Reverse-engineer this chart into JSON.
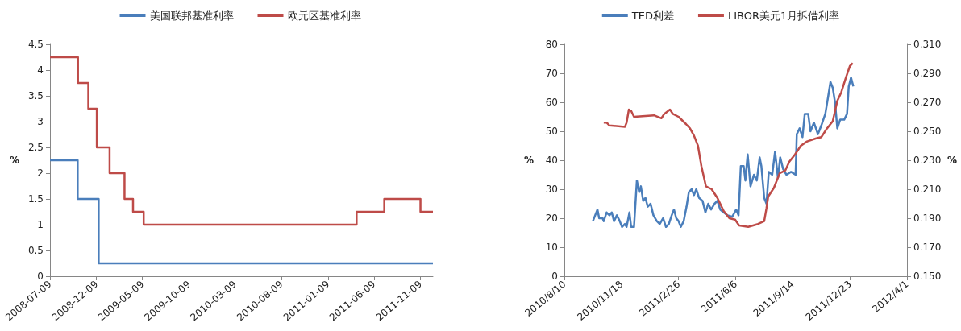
{
  "chart_data": [
    {
      "type": "step",
      "ylabel": "%",
      "legend": "top",
      "grid": false,
      "marker": "none",
      "xlim": [
        "2008-07-09",
        "2011-12-20"
      ],
      "xticks": [
        "2008-07-09",
        "2008-12-09",
        "2009-05-09",
        "2009-10-09",
        "2010-03-09",
        "2010-08-09",
        "2011-01-09",
        "2011-06-09",
        "2011-11-09"
      ],
      "ylim": [
        0,
        4.5
      ],
      "yticks": [
        0,
        0.5,
        1,
        1.5,
        2,
        2.5,
        3,
        3.5,
        4,
        4.5
      ],
      "series": [
        {
          "name": "美国联邦基准利率",
          "color": "#4a7ebb",
          "x": [
            "2008-07-09",
            "2008-10-08",
            "2008-12-16",
            "2011-12-20"
          ],
          "values": [
            2.25,
            1.5,
            0.25,
            0.25
          ]
        },
        {
          "name": "欧元区基准利率",
          "color": "#be4b48",
          "x": [
            "2008-07-09",
            "2008-10-09",
            "2008-11-12",
            "2008-12-10",
            "2009-01-21",
            "2009-03-11",
            "2009-04-08",
            "2009-05-13",
            "2011-04-13",
            "2011-07-13",
            "2011-11-09",
            "2011-12-20"
          ],
          "values": [
            4.25,
            3.75,
            3.25,
            2.5,
            2,
            1.5,
            1.25,
            1,
            1.25,
            1.5,
            1.25,
            1.25
          ]
        }
      ]
    },
    {
      "type": "line",
      "ylabel": "%",
      "y2label": "%",
      "legend": "top",
      "grid": false,
      "marker": "none",
      "xlim": [
        "2010-08-10",
        "2012-04-01"
      ],
      "xticks": [
        {
          "value": "2010-08-10",
          "label": "2010/8/10"
        },
        {
          "value": "2010-11-18",
          "label": "2010/11/18"
        },
        {
          "value": "2011-02-26",
          "label": "2011/2/26"
        },
        {
          "value": "2011-06-06",
          "label": "2011/6/6"
        },
        {
          "value": "2011-09-14",
          "label": "2011/9/14"
        },
        {
          "value": "2011-12-23",
          "label": "2011/12/23"
        },
        {
          "value": "2012-04-01",
          "label": "2012/4/1"
        }
      ],
      "ylim": [
        0,
        80
      ],
      "yticks": [
        0,
        10,
        20,
        30,
        40,
        50,
        60,
        70,
        80
      ],
      "y2lim": [
        0.15,
        0.31
      ],
      "y2ticks": [
        {
          "value": 0.15,
          "label": "0.150"
        },
        {
          "value": 0.17,
          "label": "0.170"
        },
        {
          "value": 0.19,
          "label": "0.190"
        },
        {
          "value": 0.21,
          "label": "0.210"
        },
        {
          "value": 0.23,
          "label": "0.230"
        },
        {
          "value": 0.25,
          "label": "0.250"
        },
        {
          "value": 0.27,
          "label": "0.270"
        },
        {
          "value": 0.29,
          "label": "0.290"
        },
        {
          "value": 0.31,
          "label": "0.310"
        }
      ],
      "series": [
        {
          "name": "TED利差",
          "color": "#4a7ebb",
          "x": [
            "2010-09-29",
            "2010-10-03",
            "2010-10-07",
            "2010-10-10",
            "2010-10-16",
            "2010-10-18",
            "2010-10-23",
            "2010-10-28",
            "2010-11-01",
            "2010-11-05",
            "2010-11-10",
            "2010-11-15",
            "2010-11-19",
            "2010-11-24",
            "2010-11-27",
            "2010-12-02",
            "2010-12-05",
            "2010-12-10",
            "2010-12-15",
            "2010-12-19",
            "2010-12-22",
            "2010-12-26",
            "2010-12-30",
            "2011-01-03",
            "2011-01-08",
            "2011-01-13",
            "2011-01-19",
            "2011-01-24",
            "2011-01-30",
            "2011-02-04",
            "2011-02-09",
            "2011-02-14",
            "2011-02-18",
            "2011-02-22",
            "2011-02-26",
            "2011-03-02",
            "2011-03-07",
            "2011-03-12",
            "2011-03-16",
            "2011-03-21",
            "2011-03-25",
            "2011-03-29",
            "2011-04-03",
            "2011-04-09",
            "2011-04-14",
            "2011-04-19",
            "2011-04-24",
            "2011-04-30",
            "2011-05-05",
            "2011-05-10",
            "2011-05-16",
            "2011-05-23",
            "2011-05-31",
            "2011-06-07",
            "2011-06-11",
            "2011-06-15",
            "2011-06-20",
            "2011-06-23",
            "2011-06-27",
            "2011-07-02",
            "2011-07-08",
            "2011-07-13",
            "2011-07-18",
            "2011-07-21",
            "2011-07-26",
            "2011-07-30",
            "2011-08-03",
            "2011-08-09",
            "2011-08-14",
            "2011-08-19",
            "2011-08-23",
            "2011-08-28",
            "2011-09-03",
            "2011-09-11",
            "2011-09-19",
            "2011-09-21",
            "2011-09-26",
            "2011-10-01",
            "2011-10-05",
            "2011-10-11",
            "2011-10-15",
            "2011-10-21",
            "2011-10-28",
            "2011-11-03",
            "2011-11-10",
            "2011-11-15",
            "2011-11-19",
            "2011-11-23",
            "2011-11-27",
            "2011-12-01",
            "2011-12-06",
            "2011-12-13",
            "2011-12-18",
            "2011-12-21",
            "2011-12-25",
            "2011-12-29"
          ],
          "values": [
            19,
            21,
            23,
            20,
            20,
            19,
            22,
            21,
            22,
            19,
            21,
            19,
            17,
            18,
            17,
            22,
            17,
            17,
            33,
            29,
            31,
            26,
            27,
            24,
            25,
            21,
            19,
            18,
            20,
            17,
            18,
            21,
            23,
            20,
            19,
            17,
            19,
            24,
            29,
            30,
            28,
            30,
            27,
            26,
            22,
            25,
            23,
            25,
            26,
            23,
            22,
            21,
            20.5,
            23,
            21,
            38,
            38,
            33,
            42,
            31,
            35,
            33,
            41,
            38,
            27,
            25,
            36,
            35,
            43,
            34,
            41,
            37,
            35,
            36,
            35,
            49,
            51,
            48,
            56,
            56,
            50,
            53,
            49,
            52,
            56,
            62,
            67,
            65,
            60,
            51,
            54,
            54,
            56,
            65.5,
            68.5,
            65.5
          ]
        },
        {
          "name": "LIBOR美元1月拆借利率",
          "color": "#be4b48",
          "axis": "y2",
          "x": [
            "2010-10-18",
            "2010-10-23",
            "2010-10-28",
            "2010-11-24",
            "2010-11-27",
            "2010-12-01",
            "2010-12-05",
            "2010-12-10",
            "2011-01-14",
            "2011-01-27",
            "2011-02-01",
            "2011-02-11",
            "2011-02-16",
            "2011-02-26",
            "2011-03-11",
            "2011-03-18",
            "2011-03-25",
            "2011-04-01",
            "2011-04-07",
            "2011-04-15",
            "2011-04-25",
            "2011-05-05",
            "2011-05-16",
            "2011-05-26",
            "2011-06-05",
            "2011-06-12",
            "2011-06-28",
            "2011-07-15",
            "2011-07-26",
            "2011-07-30",
            "2011-08-02",
            "2011-08-12",
            "2011-08-22",
            "2011-09-01",
            "2011-09-08",
            "2011-09-18",
            "2011-09-28",
            "2011-10-09",
            "2011-10-24",
            "2011-11-03",
            "2011-11-13",
            "2011-11-23",
            "2011-12-01",
            "2011-12-08",
            "2011-12-16",
            "2011-12-23",
            "2011-12-28"
          ],
          "values": [
            0.256,
            0.256,
            0.254,
            0.253,
            0.256,
            0.265,
            0.264,
            0.26,
            0.261,
            0.259,
            0.262,
            0.265,
            0.262,
            0.26,
            0.255,
            0.252,
            0.247,
            0.24,
            0.226,
            0.212,
            0.21,
            0.204,
            0.195,
            0.19,
            0.189,
            0.185,
            0.184,
            0.186,
            0.188,
            0.197,
            0.205,
            0.211,
            0.221,
            0.223,
            0.229,
            0.234,
            0.24,
            0.243,
            0.245,
            0.246,
            0.252,
            0.257,
            0.271,
            0.277,
            0.287,
            0.295,
            0.297
          ]
        }
      ]
    }
  ]
}
